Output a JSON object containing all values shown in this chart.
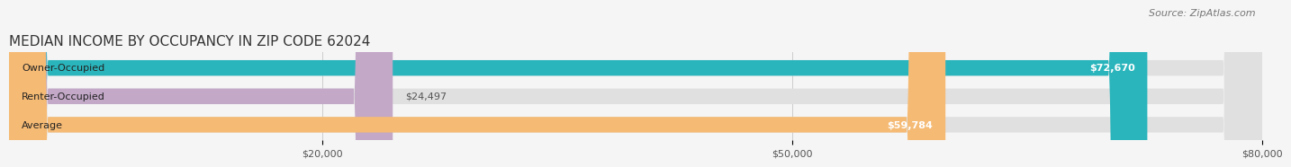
{
  "title": "MEDIAN INCOME BY OCCUPANCY IN ZIP CODE 62024",
  "source": "Source: ZipAtlas.com",
  "categories": [
    "Owner-Occupied",
    "Renter-Occupied",
    "Average"
  ],
  "values": [
    72670,
    24497,
    59784
  ],
  "bar_colors": [
    "#2ab5bc",
    "#c3a8c8",
    "#f5ba74"
  ],
  "bar_labels": [
    "$72,670",
    "$24,497",
    "$59,784"
  ],
  "xlim": [
    0,
    80000
  ],
  "xticks": [
    20000,
    50000,
    80000
  ],
  "xtick_labels": [
    "$20,000",
    "$50,000",
    "$80,000"
  ],
  "background_color": "#f5f5f5",
  "bar_background_color": "#e0e0e0",
  "title_fontsize": 11,
  "source_fontsize": 8,
  "label_fontsize": 8,
  "tick_fontsize": 8,
  "bar_height": 0.55
}
